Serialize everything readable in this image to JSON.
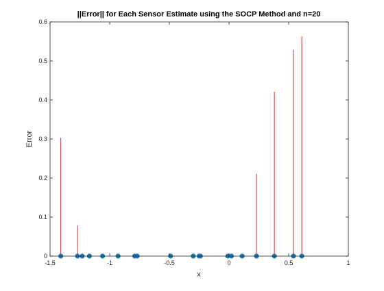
{
  "chart_data": {
    "type": "stem",
    "title": "||Error|| for Each Sensor Estimate using the SOCP Method and n=20",
    "xlabel": "x",
    "ylabel": "Error",
    "xlim": [
      -1.5,
      1
    ],
    "ylim": [
      0,
      0.6
    ],
    "xticks": [
      -1.5,
      -1,
      -0.5,
      0,
      0.5,
      1
    ],
    "yticks": [
      0,
      0.1,
      0.2,
      0.3,
      0.4,
      0.5,
      0.6
    ],
    "grid": false,
    "stem_color": "#d62728",
    "marker_color": "#1f77b4",
    "points": [
      {
        "x": -1.41,
        "y": 0.303
      },
      {
        "x": -1.27,
        "y": 0.079
      },
      {
        "x": -1.23,
        "y": 0.0
      },
      {
        "x": -1.17,
        "y": 0.0
      },
      {
        "x": -1.06,
        "y": 0.0
      },
      {
        "x": -0.93,
        "y": 0.0
      },
      {
        "x": -0.79,
        "y": 0.0
      },
      {
        "x": -0.77,
        "y": 0.0
      },
      {
        "x": -0.49,
        "y": 0.0
      },
      {
        "x": -0.3,
        "y": 0.0
      },
      {
        "x": -0.25,
        "y": 0.0
      },
      {
        "x": -0.24,
        "y": 0.0
      },
      {
        "x": -0.01,
        "y": 0.0
      },
      {
        "x": 0.02,
        "y": 0.0
      },
      {
        "x": 0.11,
        "y": 0.0
      },
      {
        "x": 0.23,
        "y": 0.211
      },
      {
        "x": 0.38,
        "y": 0.421
      },
      {
        "x": 0.54,
        "y": 0.529
      },
      {
        "x": 0.61,
        "y": 0.563
      }
    ]
  }
}
